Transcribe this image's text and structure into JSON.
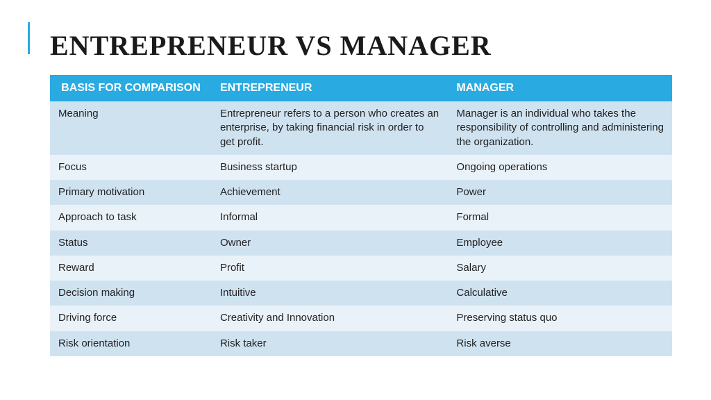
{
  "title": "ENTREPRENEUR VS MANAGER",
  "colors": {
    "accent": "#29abe2",
    "header_bg": "#29abe2",
    "header_text": "#ffffff",
    "row_light": "#eaf2f9",
    "row_dark": "#cfe2f0",
    "text": "#222222",
    "title_color": "#1a1a1a",
    "background": "#ffffff"
  },
  "typography": {
    "title_font": "Georgia, serif",
    "title_size_pt": 30,
    "title_weight": 700,
    "body_font": "Segoe UI, sans-serif",
    "header_size_pt": 12,
    "cell_size_pt": 11
  },
  "table": {
    "type": "table",
    "columns": [
      {
        "key": "basis",
        "label": "BASIS FOR COMPARISON",
        "width_pct": 26,
        "align": "center"
      },
      {
        "key": "entrepreneur",
        "label": "ENTREPRENEUR",
        "width_pct": 38,
        "align": "left"
      },
      {
        "key": "manager",
        "label": "MANAGER",
        "width_pct": 36,
        "align": "left"
      }
    ],
    "rows": [
      {
        "basis": "Meaning",
        "entrepreneur": "Entrepreneur refers to a person who creates an enterprise, by taking financial risk in order to get profit.",
        "manager": "Manager is an individual who takes the responsibility of controlling and administering the organization."
      },
      {
        "basis": "Focus",
        "entrepreneur": "Business startup",
        "manager": "Ongoing operations"
      },
      {
        "basis": "Primary motivation",
        "entrepreneur": "Achievement",
        "manager": "Power"
      },
      {
        "basis": "Approach to task",
        "entrepreneur": "Informal",
        "manager": "Formal"
      },
      {
        "basis": "Status",
        "entrepreneur": "Owner",
        "manager": "Employee"
      },
      {
        "basis": "Reward",
        "entrepreneur": "Profit",
        "manager": "Salary"
      },
      {
        "basis": "Decision making",
        "entrepreneur": "Intuitive",
        "manager": "Calculative"
      },
      {
        "basis": "Driving force",
        "entrepreneur": "Creativity and Innovation",
        "manager": "Preserving status quo"
      },
      {
        "basis": "Risk orientation",
        "entrepreneur": "Risk taker",
        "manager": "Risk averse"
      }
    ]
  }
}
